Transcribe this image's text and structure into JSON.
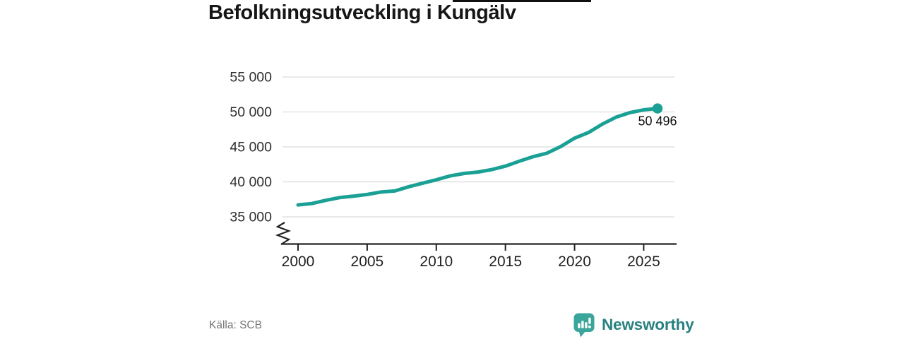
{
  "chart_data": {
    "type": "line",
    "title": "Befolkningsutveckling i Kungälv",
    "xlabel": "",
    "ylabel": "",
    "x": [
      2000,
      2001,
      2002,
      2003,
      2004,
      2005,
      2006,
      2007,
      2008,
      2009,
      2010,
      2011,
      2012,
      2013,
      2014,
      2015,
      2016,
      2017,
      2018,
      2019,
      2020,
      2021,
      2022,
      2023,
      2024,
      2025,
      2026
    ],
    "values": [
      36700,
      36900,
      37350,
      37750,
      37950,
      38200,
      38550,
      38700,
      39300,
      39800,
      40300,
      40850,
      41200,
      41400,
      41750,
      42250,
      42950,
      43600,
      44100,
      45050,
      46250,
      47050,
      48250,
      49250,
      49900,
      50300,
      50496
    ],
    "x_ticks": {
      "values": [
        2000,
        2005,
        2010,
        2015,
        2020,
        2025
      ],
      "labels": [
        "2000",
        "2005",
        "2010",
        "2015",
        "2020",
        "2025"
      ]
    },
    "y_ticks": {
      "values": [
        35000,
        40000,
        45000,
        50000,
        55000
      ],
      "labels": [
        "35 000",
        "40 000",
        "45 000",
        "50 000",
        "55 000"
      ]
    },
    "ylim": [
      35000,
      55000
    ],
    "axis_break": true,
    "grid": "horizontal",
    "legend": "none",
    "annotation": {
      "text": "50 496",
      "x": 2026,
      "y": 50496
    }
  },
  "footer": {
    "source": "Källa: SCB",
    "brand": "Newsworthy"
  },
  "colors": {
    "line": "#1aa094",
    "dot": "#1aa094",
    "grid": "#dcdcdc",
    "axis": "#222222",
    "x_tick_text": "#1f1f1f",
    "y_tick_text": "#2e2e2e",
    "annotation_text": "#111111",
    "title_text": "#161616",
    "source_text": "#757575",
    "logo_icon": "#3aa59b",
    "logo_text": "#27817e"
  }
}
